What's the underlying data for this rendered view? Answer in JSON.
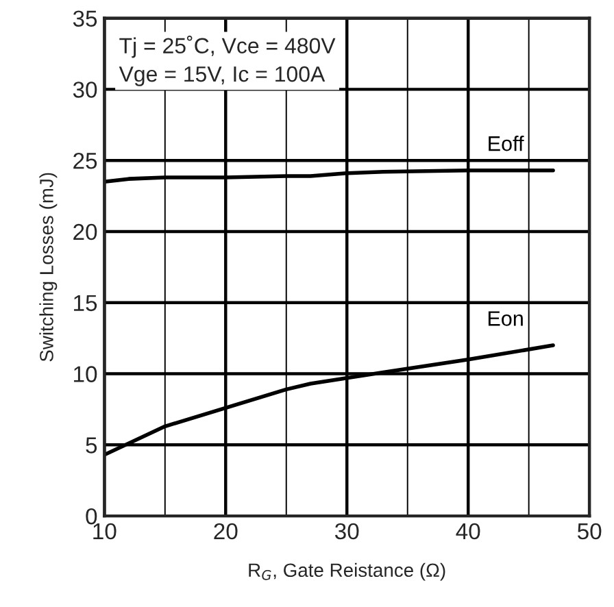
{
  "chart_data": {
    "type": "line",
    "xlabel": "R$_{G}$, Gate Reistance (Ω)",
    "ylabel": "Switching Losses (mJ)",
    "annotations": [
      "Tj = 25˚C, Vce = 480V\nVge = 15V, Ic = 100A"
    ],
    "series": [
      {
        "name": "Eoff",
        "color": "#000000",
        "x": [
          10,
          12,
          15,
          20,
          25,
          27,
          30,
          33,
          40,
          47
        ],
        "values": [
          23.5,
          23.7,
          23.8,
          23.8,
          23.9,
          23.9,
          24.1,
          24.2,
          24.3,
          24.3
        ]
      },
      {
        "name": "Eon",
        "color": "#000000",
        "x": [
          10,
          15,
          20,
          25,
          27,
          30,
          33,
          40,
          47
        ],
        "values": [
          4.3,
          6.3,
          7.6,
          8.9,
          9.3,
          9.7,
          10.1,
          11.0,
          12.0
        ]
      }
    ],
    "xlim": [
      10,
      50
    ],
    "xticks": [
      10,
      {
        "value": 15,
        "label": null
      },
      20,
      {
        "value": 25,
        "label": null
      },
      30,
      {
        "value": 35,
        "label": null
      },
      40,
      {
        "value": 45,
        "label": null
      },
      50
    ],
    "ylim": [
      0,
      35
    ],
    "yticks": [
      0,
      5,
      10,
      15,
      20,
      25,
      30,
      35
    ],
    "grid": true,
    "legend": false,
    "marker": "none",
    "line_style": "solid"
  }
}
